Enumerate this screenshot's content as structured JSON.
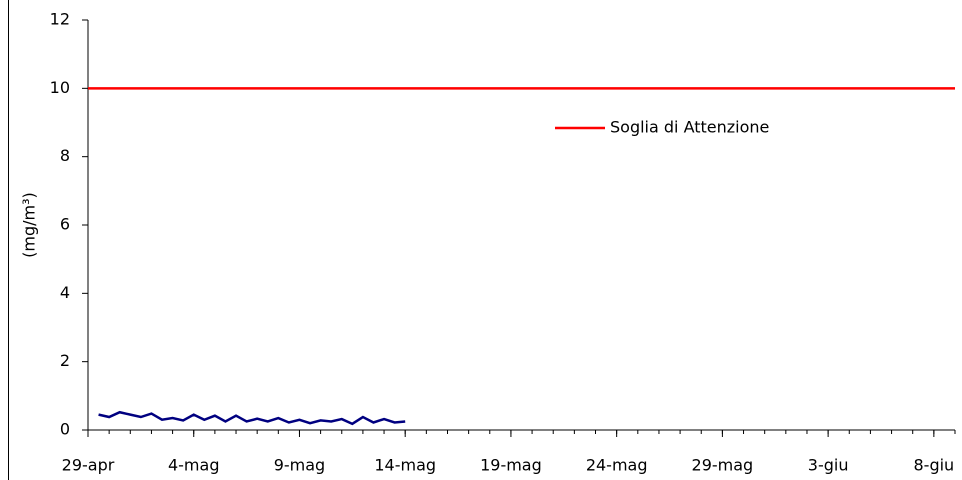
{
  "chart_data": {
    "type": "line",
    "y_label": "(mg/m³)",
    "xlim": [
      0,
      41
    ],
    "xticks": [
      {
        "value": 0,
        "label": "29-apr"
      },
      {
        "value": 5,
        "label": "4-mag"
      },
      {
        "value": 10,
        "label": "9-mag"
      },
      {
        "value": 15,
        "label": "14-mag"
      },
      {
        "value": 20,
        "label": "19-mag"
      },
      {
        "value": 25,
        "label": "24-mag"
      },
      {
        "value": 30,
        "label": "29-mag"
      },
      {
        "value": 35,
        "label": "3-giu"
      },
      {
        "value": 40,
        "label": "8-giu"
      }
    ],
    "ylim": [
      0,
      12
    ],
    "yticks": [
      0,
      2,
      4,
      6,
      8,
      10,
      12
    ],
    "legend": "upper right",
    "series": [
      {
        "name": "Soglia di Attenzione",
        "color": "#ff0000",
        "x": [
          0,
          41
        ],
        "values": [
          10,
          10
        ]
      },
      {
        "color": "#000080",
        "x": [
          0.5,
          1,
          1.5,
          2,
          2.5,
          3,
          3.5,
          4,
          4.5,
          5,
          5.5,
          6,
          6.5,
          7,
          7.5,
          8,
          8.5,
          9,
          9.5,
          10,
          10.5,
          11,
          11.5,
          12,
          12.5,
          13,
          13.5,
          14,
          14.5,
          15
        ],
        "values": [
          0.45,
          0.38,
          0.52,
          0.45,
          0.38,
          0.48,
          0.3,
          0.35,
          0.28,
          0.45,
          0.3,
          0.42,
          0.25,
          0.42,
          0.25,
          0.33,
          0.25,
          0.35,
          0.22,
          0.3,
          0.2,
          0.28,
          0.25,
          0.32,
          0.18,
          0.38,
          0.22,
          0.32,
          0.22,
          0.25
        ]
      }
    ]
  }
}
